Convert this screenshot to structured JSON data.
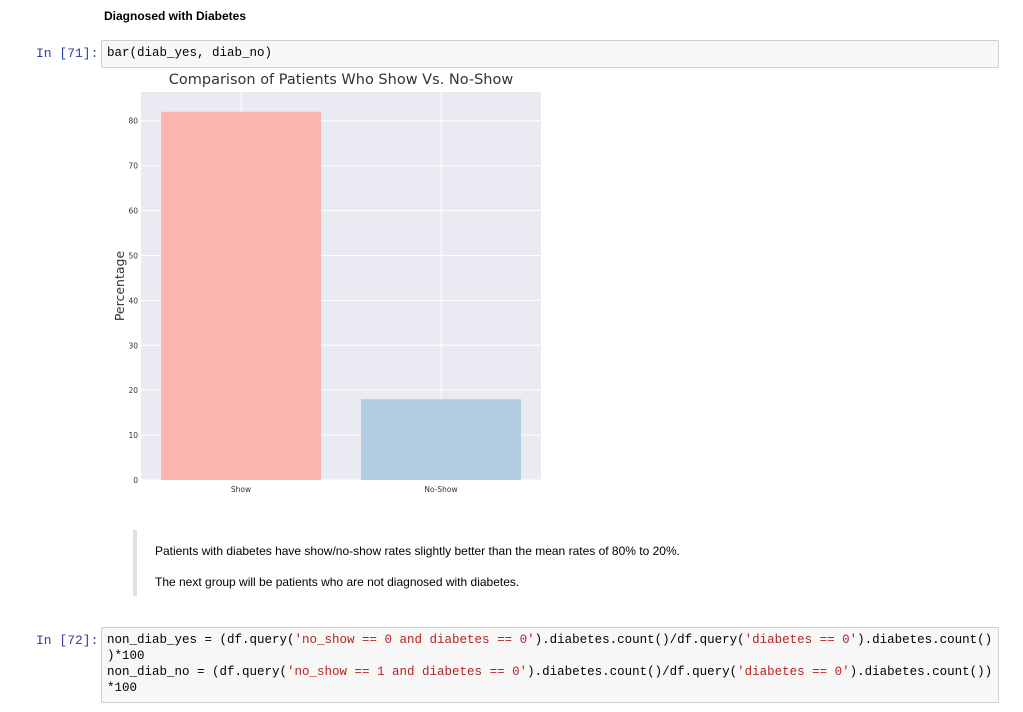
{
  "heading": "Diagnosed with Diabetes",
  "cells": [
    {
      "prompt": "In [71]:",
      "lines": [
        [
          "bar(diab_yes, diab_no)"
        ]
      ]
    },
    {
      "prompt": "In [72]:",
      "lines": [
        [
          "non_diab_yes = (df.query(",
          "'no_show == 0 and diabetes == 0'",
          ").diabetes.count()/df.query(",
          "'diabetes == 0'",
          ").diabetes.count()"
        ],
        [
          ")*100"
        ],
        [
          "non_diab_no = (df.query(",
          "'no_show == 1 and diabetes == 0'",
          ").diabetes.count()/df.query(",
          "'diabetes == 0'",
          ").diabetes.count())"
        ],
        [
          "*100"
        ]
      ]
    }
  ],
  "chart_data": {
    "type": "bar",
    "title": "Comparison of Patients Who Show Vs. No-Show",
    "ylabel": "Percentage",
    "categories": [
      "Show",
      "No-Show"
    ],
    "values": [
      82,
      18
    ],
    "colors": [
      "#fbb4ae",
      "#b3cde3"
    ],
    "ylim": [
      0,
      86.4
    ],
    "yticks": [
      0,
      10,
      20,
      30,
      40,
      50,
      60,
      70,
      80
    ],
    "grid": true
  },
  "blockquote": [
    "Patients with diabetes have show/no-show rates slightly better than the mean rates of 80% to 20%.",
    "The next group will be patients who are not diagnosed with diabetes."
  ]
}
